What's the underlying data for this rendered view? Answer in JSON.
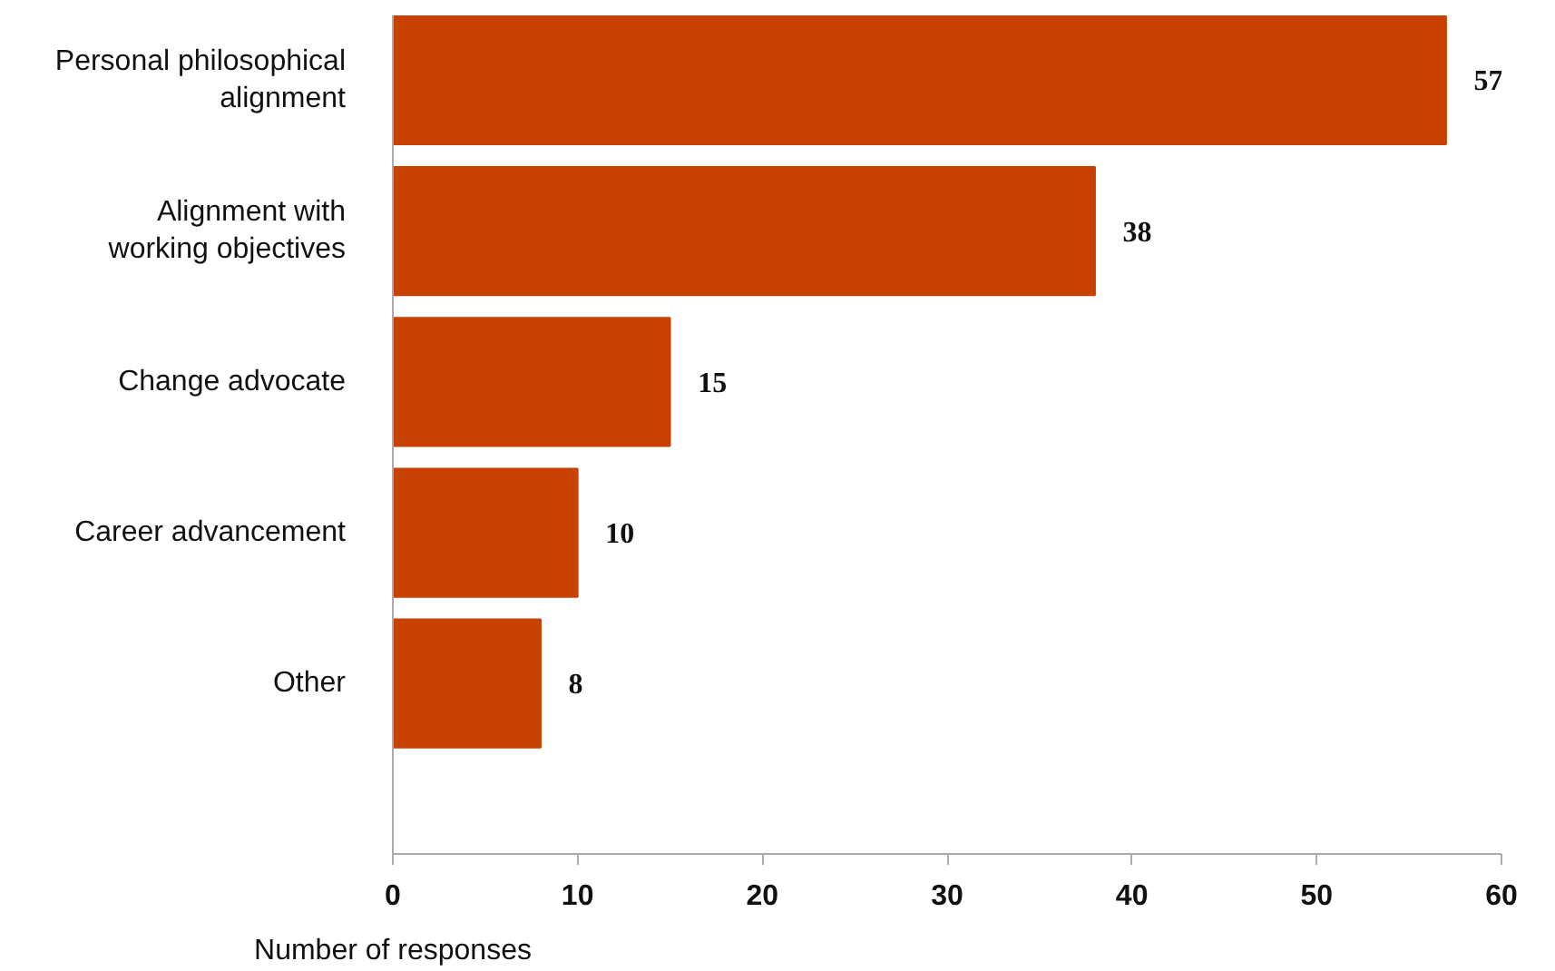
{
  "chart_data": {
    "type": "bar",
    "orientation": "horizontal",
    "xlabel": "Number of responses",
    "categories": [
      "Personal philosophical alignment",
      "Alignment with working objectives",
      "Change advocate",
      "Career advancement",
      "Other"
    ],
    "values": [
      57,
      38,
      15,
      10,
      8
    ],
    "color": "#c84100",
    "xlim": [
      0,
      60
    ],
    "xticks": [
      0,
      10,
      20,
      30,
      40,
      50,
      60
    ],
    "grid": false,
    "data_labels": true
  }
}
